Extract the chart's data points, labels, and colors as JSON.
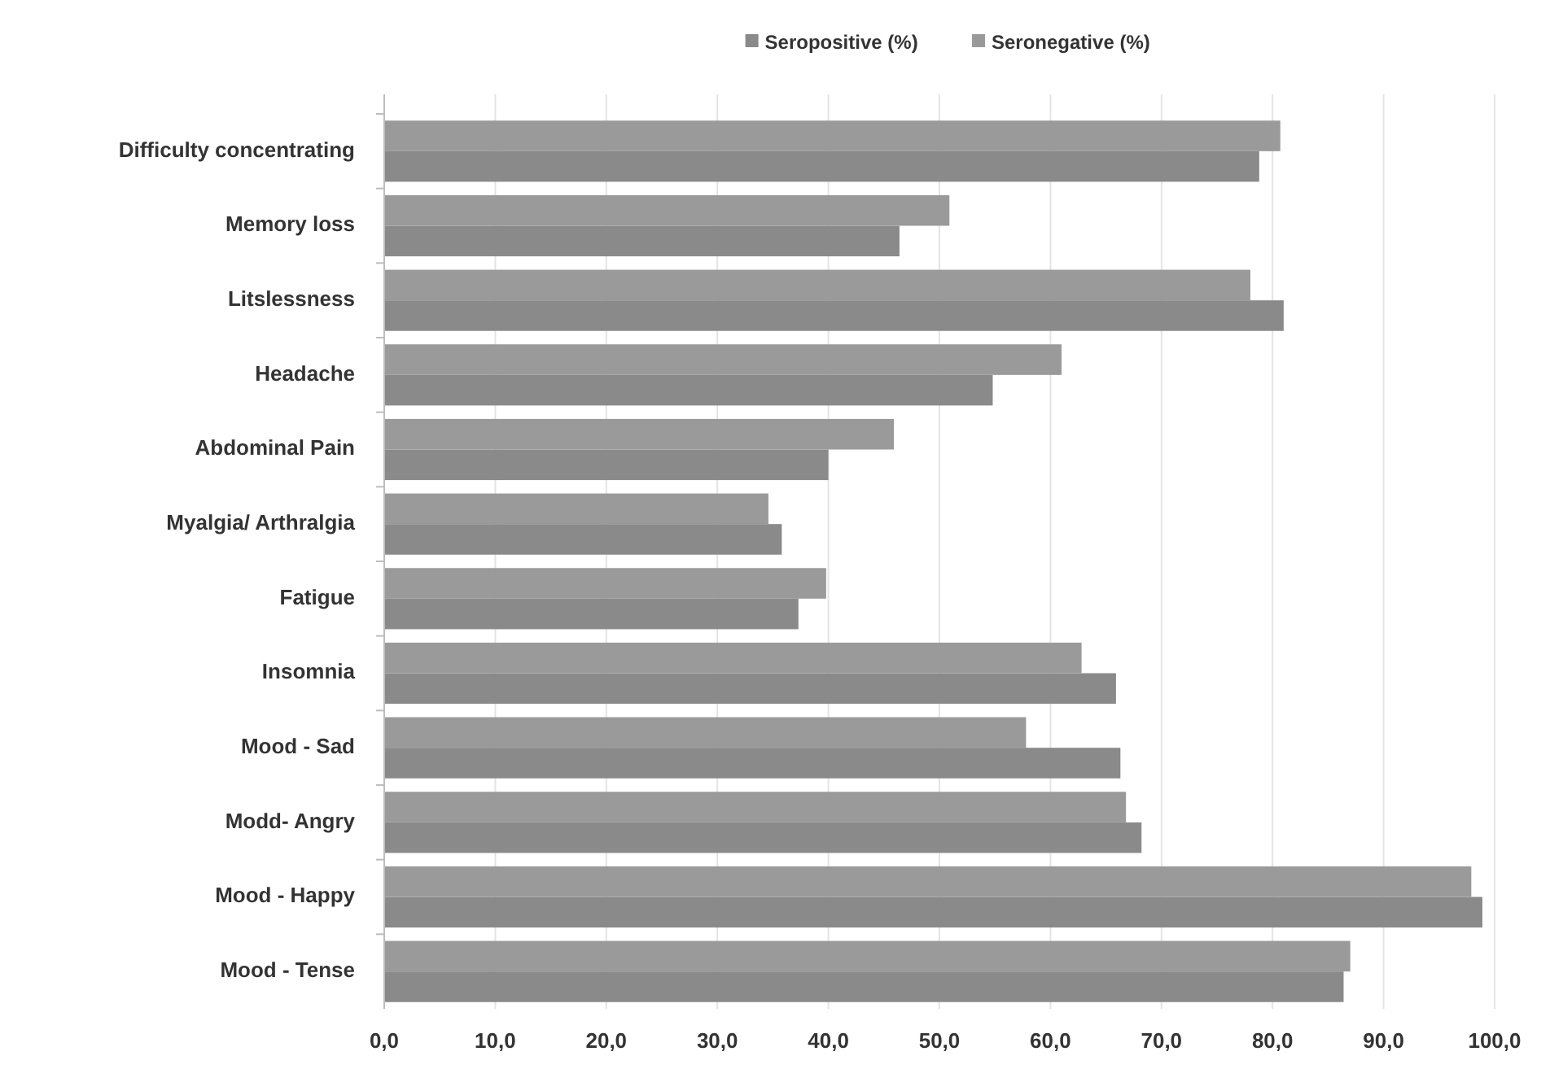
{
  "chart_data": {
    "type": "bar",
    "orientation": "horizontal",
    "categories": [
      "Difficulty concentrating",
      "Memory loss",
      "Litslessness",
      "Headache",
      "Abdominal Pain",
      "Myalgia/ Arthralgia",
      "Fatigue",
      "Insomnia",
      "Mood - Sad",
      "Modd- Angry",
      "Mood - Happy",
      "Mood - Tense"
    ],
    "series": [
      {
        "name": "Seropositive (%)",
        "color": "#8a8a8a",
        "values": [
          78.8,
          46.4,
          81.0,
          54.8,
          40.0,
          35.8,
          37.3,
          65.9,
          66.3,
          68.2,
          98.9,
          86.4
        ]
      },
      {
        "name": "Seronegative (%)",
        "color": "#9a9a9a",
        "values": [
          80.7,
          50.9,
          78.0,
          61.0,
          45.9,
          34.6,
          39.8,
          62.8,
          57.8,
          66.8,
          97.9,
          87.0
        ]
      }
    ],
    "xlim": [
      0,
      100
    ],
    "xticks": [
      {
        "value": 0,
        "label": "0,0"
      },
      {
        "value": 10,
        "label": "10,0"
      },
      {
        "value": 20,
        "label": "20,0"
      },
      {
        "value": 30,
        "label": "30,0"
      },
      {
        "value": 40,
        "label": "40,0"
      },
      {
        "value": 50,
        "label": "50,0"
      },
      {
        "value": 60,
        "label": "60,0"
      },
      {
        "value": 70,
        "label": "70,0"
      },
      {
        "value": 80,
        "label": "80,0"
      },
      {
        "value": 90,
        "label": "90,0"
      },
      {
        "value": 100,
        "label": "100,0"
      }
    ],
    "grid": "x",
    "legend": "top"
  }
}
